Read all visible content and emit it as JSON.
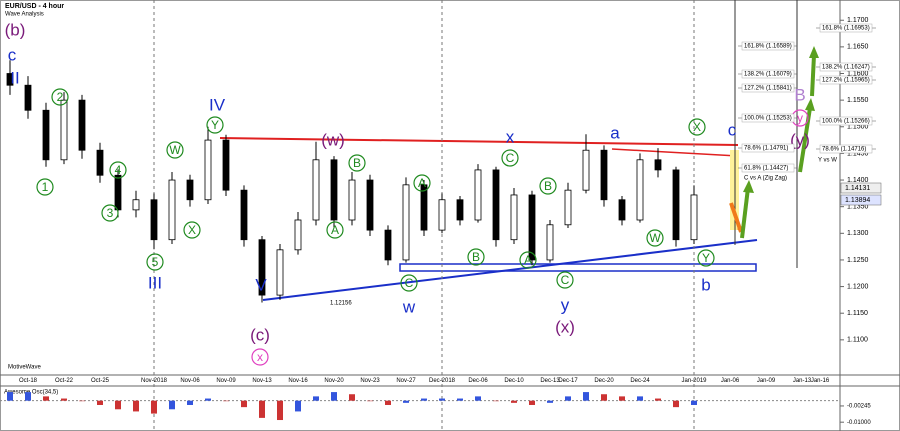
{
  "chart_data": [
    {
      "type": "candlestick",
      "title": "EUR/USD - 4 hour",
      "subtitle": "Wave Analysis",
      "categories": [
        null,
        "Oct-18",
        null,
        "Oct-22",
        null,
        "Oct-25",
        null,
        null,
        "Nov-2018",
        null,
        "Nov-06",
        null,
        "Nov-09",
        null,
        "Nov-13",
        null,
        "Nov-16",
        null,
        "Nov-20",
        null,
        "Nov-23",
        null,
        "Nov-27",
        null,
        "Dec-2018",
        null,
        "Dec-06",
        null,
        "Dec-10",
        null,
        "Dec-13",
        "Dec-17",
        null,
        "Dec-20",
        null,
        "Dec-24",
        null,
        null,
        "Jan-2019",
        null,
        "Jan-06",
        null,
        "Jan-09",
        null,
        "Jan-13",
        "Jan-16"
      ],
      "open": [
        1.16,
        1.1578,
        1.1531,
        1.1438,
        1.155,
        1.1456,
        1.1409,
        1.1344,
        1.1363,
        1.1288,
        1.14,
        1.1363,
        1.1475,
        1.1381,
        1.1288,
        1.1184,
        1.1269,
        1.1325,
        1.1438,
        1.1325,
        1.14,
        1.1306,
        1.125,
        1.1391,
        1.1306,
        1.1363,
        1.1325,
        1.1419,
        1.1288,
        1.1372,
        1.125,
        1.1316,
        1.1381,
        1.1456,
        1.1363,
        1.1325,
        1.1438,
        1.1419,
        1.1288,
        null,
        null,
        null,
        null,
        null,
        null,
        null
      ],
      "high": [
        1.1625,
        1.1595,
        1.1545,
        1.1565,
        1.156,
        1.147,
        1.142,
        1.138,
        1.1375,
        1.1415,
        1.141,
        1.15,
        1.1485,
        1.139,
        1.1295,
        1.128,
        1.134,
        1.1472,
        1.1445,
        1.1415,
        1.141,
        1.1315,
        1.1405,
        1.14,
        1.1375,
        1.137,
        1.143,
        1.1425,
        1.1385,
        1.138,
        1.1325,
        1.1395,
        1.1486,
        1.1465,
        1.137,
        1.145,
        1.146,
        1.1425,
        1.139,
        null,
        null,
        null,
        null,
        null,
        null,
        null
      ],
      "low": [
        1.156,
        1.1515,
        1.1425,
        1.143,
        1.144,
        1.1395,
        1.133,
        1.133,
        1.127,
        1.128,
        1.135,
        1.1355,
        1.137,
        1.1275,
        1.117,
        1.1175,
        1.126,
        1.1315,
        1.131,
        1.1315,
        1.1295,
        1.124,
        1.1245,
        1.1295,
        1.13,
        1.1315,
        1.132,
        1.1275,
        1.128,
        1.124,
        1.1245,
        1.131,
        1.1375,
        1.135,
        1.1315,
        1.132,
        1.1405,
        1.1275,
        1.128,
        null,
        null,
        null,
        null,
        null,
        null,
        null
      ],
      "close": [
        1.1578,
        1.1531,
        1.1438,
        1.155,
        1.1456,
        1.1409,
        1.1344,
        1.1363,
        1.1288,
        1.14,
        1.1363,
        1.1475,
        1.1381,
        1.1288,
        1.1184,
        1.1269,
        1.1325,
        1.1438,
        1.1325,
        1.14,
        1.1306,
        1.125,
        1.1391,
        1.1306,
        1.1363,
        1.1325,
        1.1419,
        1.1288,
        1.1372,
        1.125,
        1.1316,
        1.1381,
        1.1456,
        1.1363,
        1.1325,
        1.1438,
        1.1419,
        1.1288,
        1.1372,
        null,
        null,
        null,
        null,
        null,
        null,
        null
      ],
      "up_color": "#ffffff",
      "down_color": "#000000",
      "ylim": [
        1.1034,
        1.1738
      ],
      "yticks": [
        {
          "value": 1.17,
          "label": "1.1700"
        },
        {
          "value": 1.165,
          "label": "1.1650"
        },
        {
          "value": 1.16,
          "label": "1.1600"
        },
        {
          "value": 1.155,
          "label": "1.1550"
        },
        {
          "value": 1.15,
          "label": "1.1500"
        },
        {
          "value": 1.145,
          "label": "1.1450"
        },
        {
          "value": 1.14,
          "label": "1.1400"
        },
        {
          "value": 1.135,
          "label": "1.1350"
        },
        {
          "value": 1.13,
          "label": "1.1300"
        },
        {
          "value": 1.125,
          "label": "1.1250"
        },
        {
          "value": 1.12,
          "label": "1.1200"
        },
        {
          "value": 1.115,
          "label": "1.1150"
        },
        {
          "value": 1.11,
          "label": "1.1100"
        }
      ],
      "annotations": {
        "waves": [
          "(b)",
          "c",
          "II",
          "1",
          "2",
          "3",
          "4",
          "5",
          "III",
          "W",
          "X",
          "Y",
          "IV",
          "V",
          "(c)",
          "x",
          "(w)",
          "A",
          "B",
          "A",
          "B",
          "A",
          "C",
          "B",
          "C",
          "C",
          "w",
          "x",
          "y",
          "(x)",
          "a",
          "W",
          "X",
          "Y",
          "b",
          "c",
          "B",
          "y",
          "(y)"
        ],
        "fib_left": [
          "161.8% (1.16589)",
          "138.2% (1.16079)",
          "127.2% (1.15841)",
          "100.0% (1.15253)",
          "78.6% (1.14791)",
          "61.8% (1.14427)"
        ],
        "fib_left_title": "C vs A (Zig Zag)",
        "fib_right": [
          "161.8% (1.16953)",
          "138.2% (1.16247)",
          "127.2% (1.15965)",
          "100.0% (1.15266)",
          "78.6% (1.14716)"
        ],
        "fib_right_title": "Y vs W",
        "price_labels": [
          "1.14131",
          "1.13894"
        ],
        "low_label": "1.12156",
        "brand": "MotiveWave"
      }
    },
    {
      "type": "bar",
      "title": "Awesome Osc(34,5)",
      "values": [
        0.004,
        0.004,
        0.002,
        0.001,
        0,
        -0.002,
        -0.004,
        -0.005,
        -0.006,
        -0.004,
        -0.002,
        0.001,
        0,
        -0.003,
        -0.008,
        -0.009,
        -0.005,
        0.002,
        0.004,
        0.003,
        0,
        -0.002,
        -0.001,
        0.001,
        0.001,
        0.001,
        0.002,
        0,
        -0.001,
        -0.002,
        -0.001,
        0.002,
        0.004,
        0.003,
        0.002,
        0.002,
        0.001,
        -0.003,
        -0.002,
        null,
        null,
        null,
        null,
        null,
        null,
        null
      ],
      "up_color": "#3355dd",
      "down_color": "#cc3333",
      "ylim": [
        -0.0141,
        0.0059
      ],
      "yticks": [
        {
          "value": -0.00245,
          "label": "-0.00245"
        },
        {
          "value": -0.01,
          "label": "-0.01000"
        }
      ]
    }
  ]
}
